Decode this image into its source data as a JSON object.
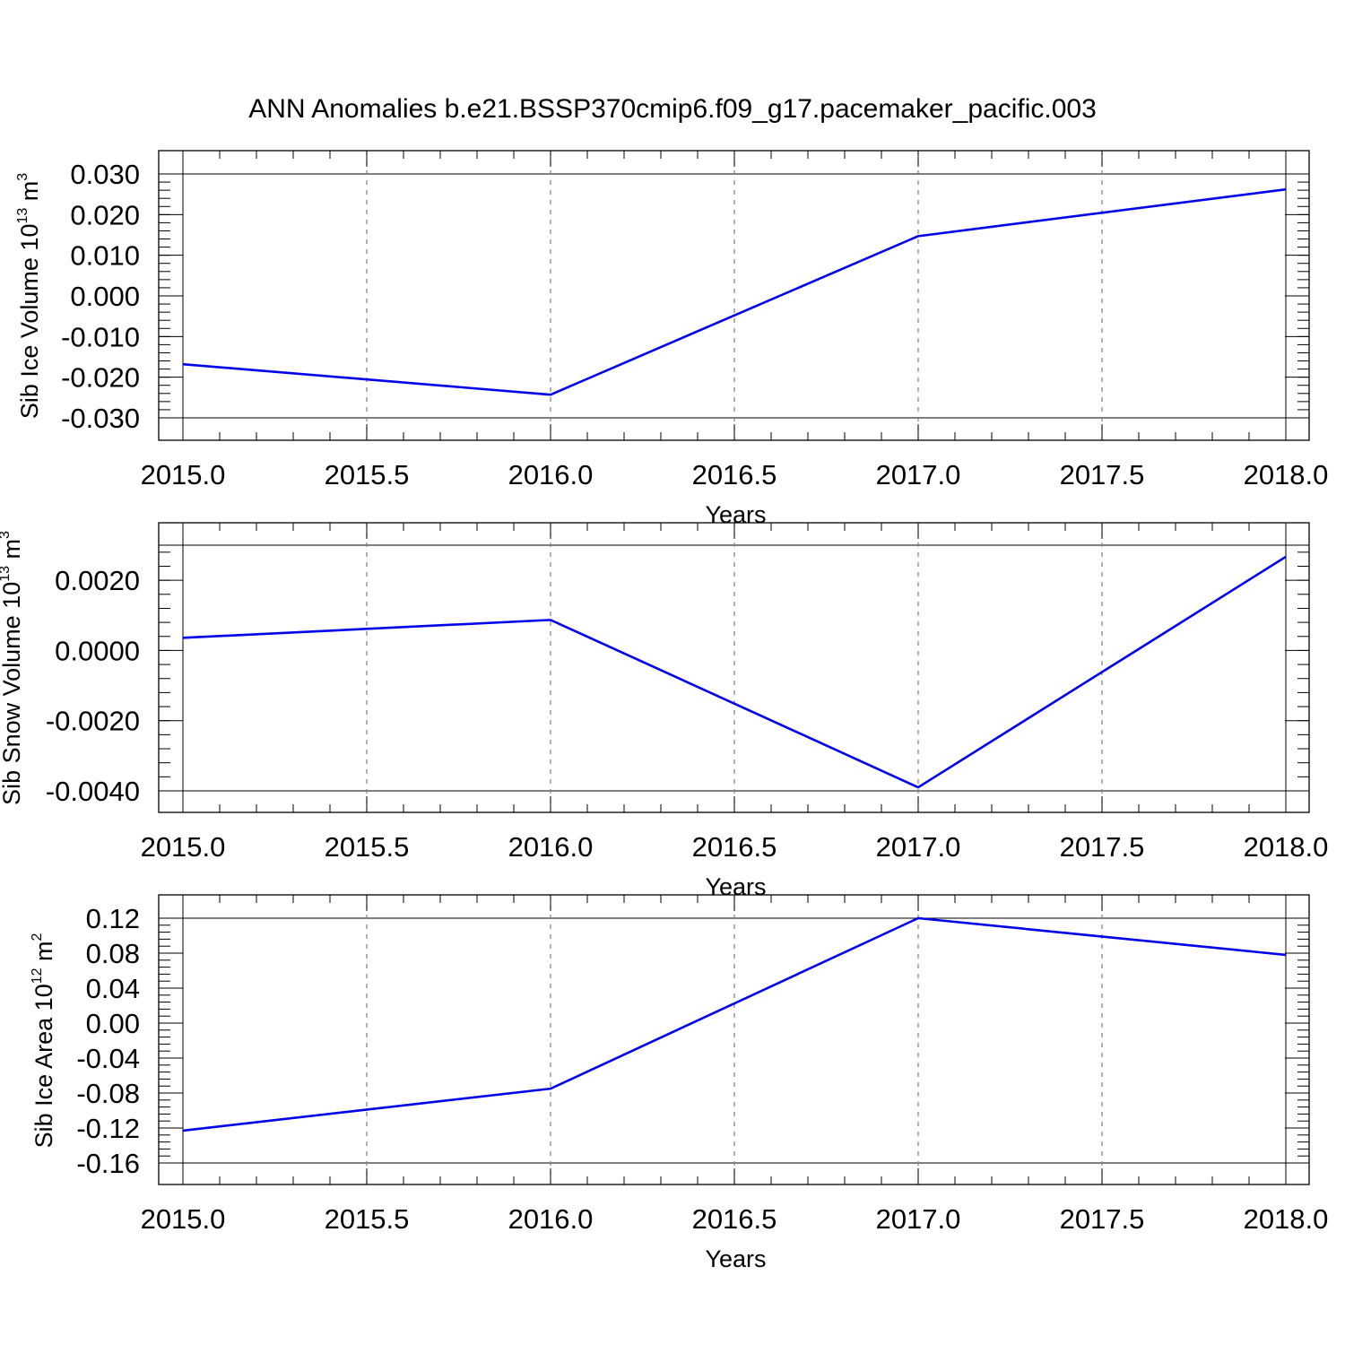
{
  "chart_data": {
    "title": "ANN Anomalies b.e21.BSSP370cmip6.f09_g17.pacemaker_pacific.003",
    "series_color": "#0000ee",
    "panels": [
      {
        "type": "line",
        "ylabel": "Sib Ice Volume 10",
        "ylabel_exp": "13",
        "ylabel_unit": "m",
        "ylabel_unit_exp": "3",
        "xlabel": "Years",
        "x": [
          2015,
          2016,
          2017,
          2018
        ],
        "values": [
          -0.0168,
          -0.0243,
          0.0147,
          0.0262
        ],
        "xlim": [
          2015,
          2018
        ],
        "ylim": [
          -0.03,
          0.03
        ],
        "xticks": [
          "2015.0",
          "2015.5",
          "2016.0",
          "2016.5",
          "2017.0",
          "2017.5",
          "2018.0"
        ],
        "yticks": [
          "-0.030",
          "-0.020",
          "-0.010",
          "0.000",
          "0.010",
          "0.020",
          "0.030"
        ],
        "grid": "x-dashed"
      },
      {
        "type": "line",
        "ylabel": "Sib Snow Volume 10",
        "ylabel_exp": "13",
        "ylabel_unit": "m",
        "ylabel_unit_exp": "3",
        "xlabel": "Years",
        "x": [
          2015,
          2016,
          2017,
          2018
        ],
        "values": [
          0.00036,
          0.00087,
          -0.0039,
          0.00267
        ],
        "xlim": [
          2015,
          2018
        ],
        "ylim": [
          -0.004,
          0.003
        ],
        "xticks": [
          "2015.0",
          "2015.5",
          "2016.0",
          "2016.5",
          "2017.0",
          "2017.5",
          "2018.0"
        ],
        "yticks": [
          "-0.0040",
          "-0.0020",
          "0.0000",
          "0.0020"
        ],
        "grid": "x-dashed"
      },
      {
        "type": "line",
        "ylabel": "Sib Ice Area 10",
        "ylabel_exp": "12",
        "ylabel_unit": "m",
        "ylabel_unit_exp": "2",
        "xlabel": "Years",
        "x": [
          2015,
          2016,
          2017,
          2018
        ],
        "values": [
          -0.123,
          -0.075,
          0.12,
          0.078
        ],
        "xlim": [
          2015,
          2018
        ],
        "ylim": [
          -0.16,
          0.12
        ],
        "xticks": [
          "2015.0",
          "2015.5",
          "2016.0",
          "2016.5",
          "2017.0",
          "2017.5",
          "2018.0"
        ],
        "yticks": [
          "-0.16",
          "-0.12",
          "-0.08",
          "-0.04",
          "0.00",
          "0.04",
          "0.08",
          "0.12"
        ],
        "grid": "x-dashed"
      }
    ]
  }
}
